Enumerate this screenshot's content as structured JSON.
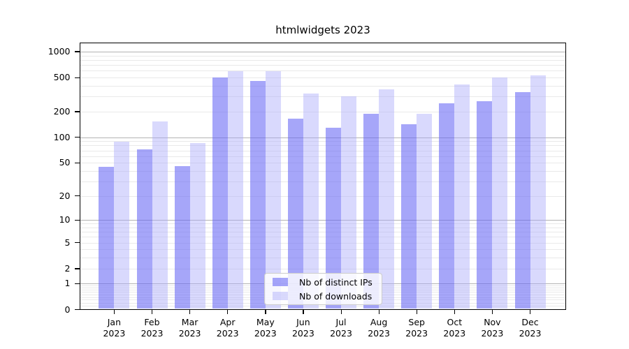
{
  "chart_data": {
    "type": "bar",
    "title": "htmlwidgets 2023",
    "categories": [
      "Jan",
      "Feb",
      "Mar",
      "Apr",
      "May",
      "Jun",
      "Jul",
      "Aug",
      "Sep",
      "Oct",
      "Nov",
      "Dec"
    ],
    "category_year": "2023",
    "series": [
      {
        "name": "Nb of distinct IPs",
        "color": "#a6a6f6",
        "fill_rgba": "rgba(99,99,245,0.57)",
        "values": [
          45,
          72,
          46,
          500,
          455,
          166,
          129,
          189,
          141,
          250,
          265,
          336
        ]
      },
      {
        "name": "Nb of downloads",
        "color": "#d9d9fa",
        "fill_rgba": "rgba(168,168,250,0.44)",
        "values": [
          89,
          153,
          86,
          591,
          591,
          325,
          304,
          364,
          188,
          412,
          500,
          529
        ]
      }
    ],
    "y_axis": {
      "scale": "log10(value+1)",
      "ticks": [
        0,
        1,
        2,
        5,
        10,
        20,
        50,
        100,
        200,
        500,
        1000
      ],
      "major_gridline_values": [
        1,
        10,
        100,
        1000
      ],
      "top_value": 1270
    },
    "x_axis": {
      "tick_position": "group-center"
    },
    "legend": {
      "position": "bottom-center",
      "entries": [
        "Nb of distinct IPs",
        "Nb of downloads"
      ]
    },
    "grid": {
      "on": true,
      "major_color": "#b3b3b3",
      "minor_color": "#e9e9e9"
    }
  }
}
